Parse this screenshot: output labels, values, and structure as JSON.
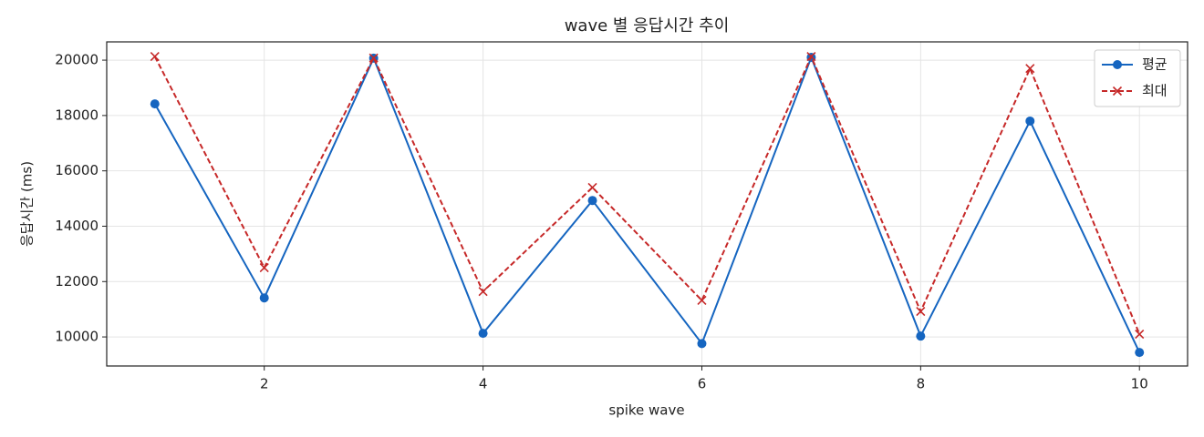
{
  "chart_data": {
    "type": "line",
    "title": "wave 별 응답시간 추이",
    "xlabel": "spike wave",
    "ylabel": "응답시간 (ms)",
    "x": [
      1,
      2,
      3,
      4,
      5,
      6,
      7,
      8,
      9,
      10
    ],
    "series": [
      {
        "name": "평균",
        "color": "#1565c0",
        "marker": "o",
        "linestyle": "solid",
        "values": [
          18420,
          11410,
          20070,
          10130,
          14930,
          9760,
          20100,
          10030,
          17800,
          9440
        ]
      },
      {
        "name": "최대",
        "color": "#c62828",
        "marker": "x",
        "linestyle": "dashed",
        "values": [
          20130,
          12500,
          20080,
          11640,
          15400,
          11320,
          20130,
          10920,
          19700,
          10100
        ]
      }
    ],
    "xlim": [
      0.56,
      10.44
    ],
    "xticks": [
      2,
      4,
      6,
      8,
      10
    ],
    "ylim": [
      8950,
      20660
    ],
    "yticks": [
      10000,
      12000,
      14000,
      16000,
      18000,
      20000
    ],
    "grid": true,
    "legend": "upper right"
  }
}
